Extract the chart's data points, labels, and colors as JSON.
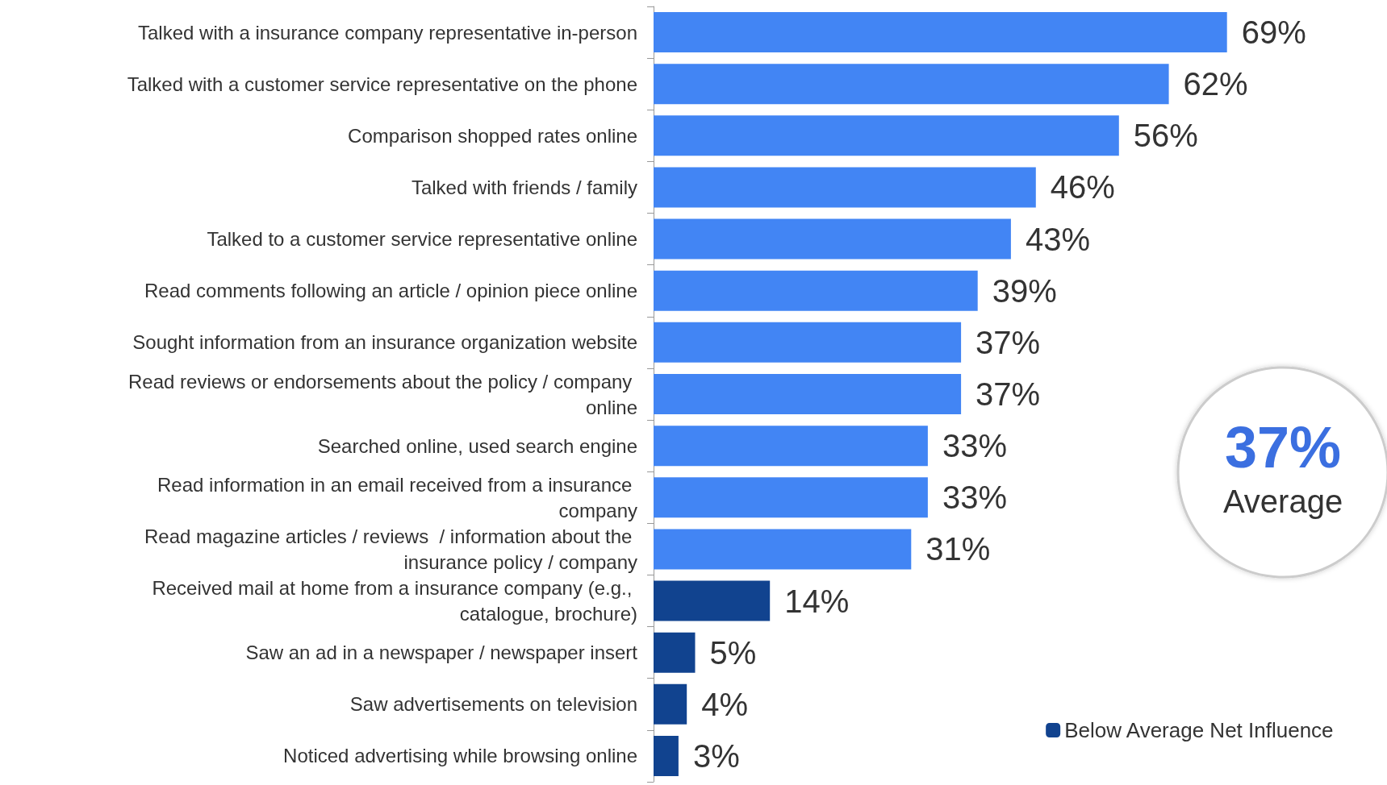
{
  "chart_data": {
    "type": "bar",
    "orientation": "horizontal",
    "categories": [
      "Talked with a insurance company representative in-person",
      "Talked with a customer service representative on the phone",
      "Comparison shopped rates online",
      "Talked with friends / family",
      "Talked to a customer service representative online",
      "Read comments following an article / opinion piece online",
      "Sought information from an insurance organization website",
      "Read reviews or endorsements about the policy / company online",
      "Searched online, used search engine",
      "Read information in an email received from a insurance company",
      "Read magazine articles / reviews  / information about the insurance policy / company",
      "Received mail at home from a insurance company (e.g., catalogue, brochure)",
      "Saw an ad in a newspaper / newspaper insert",
      "Saw advertisements on television",
      "Noticed advertising while browsing online"
    ],
    "series": [
      {
        "color": "#4285f4",
        "values": [
          69,
          62,
          56,
          46,
          43,
          39,
          37,
          37,
          33,
          33,
          31,
          null,
          null,
          null,
          null
        ],
        "value_labels": [
          "69%",
          "62%",
          "56%",
          "46%",
          "43%",
          "39%",
          "37%",
          "37%",
          "33%",
          "33%",
          "31%",
          null,
          null,
          null,
          null
        ]
      },
      {
        "name": "Below Average Net Influence",
        "color": "#11438f",
        "values": [
          null,
          null,
          null,
          null,
          null,
          null,
          null,
          null,
          null,
          null,
          null,
          14,
          5,
          4,
          3
        ],
        "value_labels": [
          null,
          null,
          null,
          null,
          null,
          null,
          null,
          null,
          null,
          null,
          null,
          "14%",
          "5%",
          "4%",
          "3%"
        ]
      }
    ],
    "tick_labels": "y",
    "legend": "bottom right",
    "annotations": [
      "37%",
      "Average"
    ]
  }
}
